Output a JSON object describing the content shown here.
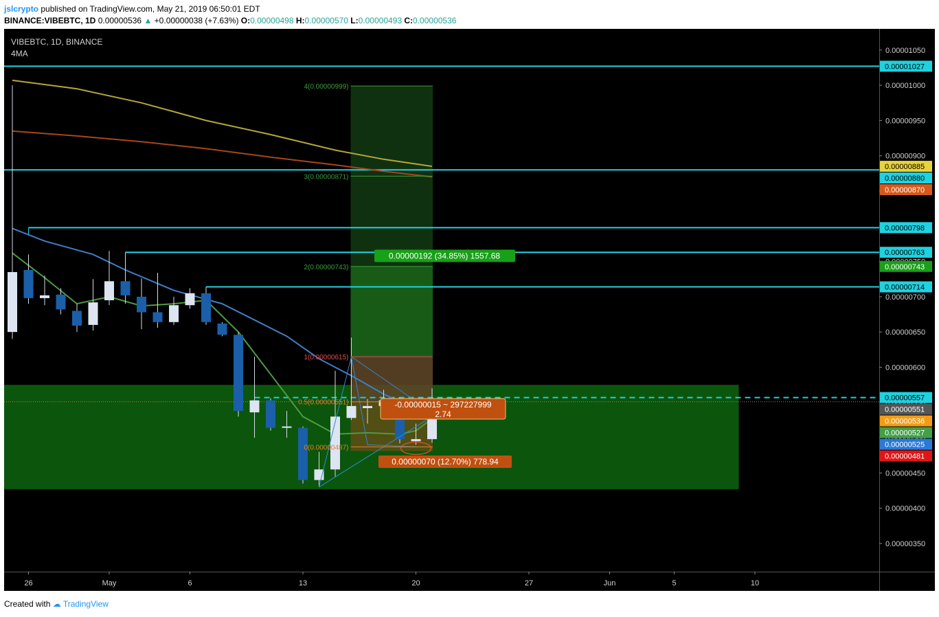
{
  "header": {
    "author": "jslcrypto",
    "published": "published on TradingView.com, May 21, 2019 06:50:01 EDT",
    "symbol_line": "BINANCE:VIBEBTC, 1D",
    "last": "0.00000536",
    "change": "+0.00000038 (+7.63%)",
    "o_label": "O:",
    "o": "0.00000498",
    "h_label": "H:",
    "h": "0.00000570",
    "l_label": "L:",
    "l": "0.00000493",
    "c_label": "C:",
    "c": "0.00000536"
  },
  "legend": {
    "symbol": "VIBEBTC, 1D, BINANCE",
    "indicator": "4MA"
  },
  "footer": {
    "created_with": "Created with",
    "brand": "TradingView"
  },
  "colors": {
    "background": "#000000",
    "bull_candle": "#dde4f2",
    "bear_candle": "#1a5fa8",
    "level_line": "#1fd2e0",
    "zone_fill": "#0d5a0d",
    "ma_yellow": "#b5a73a",
    "ma_orange": "#a8461a",
    "ma_blue": "#3f7fc7",
    "ma_green": "#4f9a44"
  },
  "chart_data": {
    "type": "candlestick",
    "title": "",
    "ylim": [
      3.1e-06,
      1.08e-05
    ],
    "y_ticks": [
      "0.00000350",
      "0.00000400",
      "0.00000450",
      "0.00000500",
      "0.00000550",
      "0.00000600",
      "0.00000650",
      "0.00000700",
      "0.00000750",
      "0.00000800",
      "0.00000850",
      "0.00000900",
      "0.00000950",
      "0.00001000",
      "0.00001050"
    ],
    "x_ticks": [
      {
        "label": "26",
        "day": "2019-04-26"
      },
      {
        "label": "May",
        "day": "2019-05-01"
      },
      {
        "label": "6",
        "day": "2019-05-06"
      },
      {
        "label": "13",
        "day": "2019-05-13"
      },
      {
        "label": "20",
        "day": "2019-05-20"
      },
      {
        "label": "27",
        "day": "2019-05-27"
      },
      {
        "label": "Jun",
        "day": "2019-06-01"
      },
      {
        "label": "5",
        "day": "2019-06-05"
      },
      {
        "label": "10",
        "day": "2019-06-10"
      }
    ],
    "candles": [
      {
        "date": "2019-04-25",
        "o": 6.5e-06,
        "h": 1e-05,
        "l": 6.4e-06,
        "c": 7.35e-06
      },
      {
        "date": "2019-04-26",
        "o": 7.38e-06,
        "h": 7.6e-06,
        "l": 6.9e-06,
        "c": 6.98e-06
      },
      {
        "date": "2019-04-27",
        "o": 6.98e-06,
        "h": 7.3e-06,
        "l": 6.88e-06,
        "c": 7.02e-06
      },
      {
        "date": "2019-04-28",
        "o": 7.03e-06,
        "h": 7.12e-06,
        "l": 6.75e-06,
        "c": 6.82e-06
      },
      {
        "date": "2019-04-29",
        "o": 6.8e-06,
        "h": 6.9e-06,
        "l": 6.5e-06,
        "c": 6.59e-06
      },
      {
        "date": "2019-04-30",
        "o": 6.6e-06,
        "h": 7.25e-06,
        "l": 6.52e-06,
        "c": 6.92e-06
      },
      {
        "date": "2019-05-01",
        "o": 6.95e-06,
        "h": 7.65e-06,
        "l": 6.88e-06,
        "c": 7.22e-06
      },
      {
        "date": "2019-05-02",
        "o": 7.22e-06,
        "h": 7.63e-06,
        "l": 6.9e-06,
        "c": 7.02e-06
      },
      {
        "date": "2019-05-03",
        "o": 7e-06,
        "h": 7.26e-06,
        "l": 6.54e-06,
        "c": 6.78e-06
      },
      {
        "date": "2019-05-04",
        "o": 6.78e-06,
        "h": 7.34e-06,
        "l": 6.56e-06,
        "c": 6.64e-06
      },
      {
        "date": "2019-05-05",
        "o": 6.64e-06,
        "h": 7e-06,
        "l": 6.6e-06,
        "c": 6.88e-06
      },
      {
        "date": "2019-05-06",
        "o": 6.88e-06,
        "h": 7.12e-06,
        "l": 6.83e-06,
        "c": 7.05e-06
      },
      {
        "date": "2019-05-07",
        "o": 7.05e-06,
        "h": 7.14e-06,
        "l": 6.6e-06,
        "c": 6.64e-06
      },
      {
        "date": "2019-05-08",
        "o": 6.62e-06,
        "h": 6.64e-06,
        "l": 6.44e-06,
        "c": 6.46e-06
      },
      {
        "date": "2019-05-09",
        "o": 6.46e-06,
        "h": 6.5e-06,
        "l": 5.3e-06,
        "c": 5.38e-06
      },
      {
        "date": "2019-05-10",
        "o": 5.36e-06,
        "h": 6.15e-06,
        "l": 5e-06,
        "c": 5.53e-06
      },
      {
        "date": "2019-05-11",
        "o": 5.53e-06,
        "h": 5.56e-06,
        "l": 5.1e-06,
        "c": 5.14e-06
      },
      {
        "date": "2019-05-12",
        "o": 5.14e-06,
        "h": 5.38e-06,
        "l": 5e-06,
        "c": 5.16e-06
      },
      {
        "date": "2019-05-13",
        "o": 5.14e-06,
        "h": 5.16e-06,
        "l": 4.35e-06,
        "c": 4.4e-06
      },
      {
        "date": "2019-05-14",
        "o": 4.4e-06,
        "h": 4.8e-06,
        "l": 4.3e-06,
        "c": 4.55e-06
      },
      {
        "date": "2019-05-15",
        "o": 4.55e-06,
        "h": 5.95e-06,
        "l": 4.45e-06,
        "c": 5.3e-06
      },
      {
        "date": "2019-05-16",
        "o": 5.28e-06,
        "h": 6.42e-06,
        "l": 5.25e-06,
        "c": 5.45e-06
      },
      {
        "date": "2019-05-17",
        "o": 5.42e-06,
        "h": 5.55e-06,
        "l": 5.2e-06,
        "c": 5.45e-06
      },
      {
        "date": "2019-05-18",
        "o": 5.45e-06,
        "h": 5.68e-06,
        "l": 5.35e-06,
        "c": 5.53e-06
      },
      {
        "date": "2019-05-19",
        "o": 5.53e-06,
        "h": 5.57e-06,
        "l": 4.92e-06,
        "c": 4.98e-06
      },
      {
        "date": "2019-05-20",
        "o": 4.95e-06,
        "h": 5.2e-06,
        "l": 4.9e-06,
        "c": 4.98e-06
      },
      {
        "date": "2019-05-21",
        "o": 4.98e-06,
        "h": 5.7e-06,
        "l": 4.93e-06,
        "c": 5.36e-06
      }
    ],
    "moving_averages": [
      {
        "color": "#b5a73a",
        "points": [
          [
            "2019-04-25",
            1.007e-05
          ],
          [
            "2019-04-29",
            9.95e-06
          ],
          [
            "2019-05-03",
            9.75e-06
          ],
          [
            "2019-05-07",
            9.5e-06
          ],
          [
            "2019-05-11",
            9.3e-06
          ],
          [
            "2019-05-15",
            9.08e-06
          ],
          [
            "2019-05-18",
            8.95e-06
          ],
          [
            "2019-05-21",
            8.85e-06
          ]
        ]
      },
      {
        "color": "#a8461a",
        "points": [
          [
            "2019-04-25",
            9.35e-06
          ],
          [
            "2019-04-29",
            9.28e-06
          ],
          [
            "2019-05-03",
            9.2e-06
          ],
          [
            "2019-05-07",
            9.1e-06
          ],
          [
            "2019-05-11",
            8.98e-06
          ],
          [
            "2019-05-15",
            8.87e-06
          ],
          [
            "2019-05-18",
            8.78e-06
          ],
          [
            "2019-05-21",
            8.7e-06
          ]
        ]
      },
      {
        "color": "#3f7fc7",
        "points": [
          [
            "2019-04-25",
            7.97e-06
          ],
          [
            "2019-04-27",
            7.79e-06
          ],
          [
            "2019-04-30",
            7.6e-06
          ],
          [
            "2019-05-02",
            7.38e-06
          ],
          [
            "2019-05-05",
            7.09e-06
          ],
          [
            "2019-05-08",
            6.9e-06
          ],
          [
            "2019-05-10",
            6.67e-06
          ],
          [
            "2019-05-12",
            6.44e-06
          ],
          [
            "2019-05-14",
            6.12e-06
          ],
          [
            "2019-05-16",
            5.88e-06
          ],
          [
            "2019-05-18",
            5.62e-06
          ],
          [
            "2019-05-20",
            5.4e-06
          ],
          [
            "2019-05-21",
            5.25e-06
          ]
        ]
      },
      {
        "color": "#4f9a44",
        "points": [
          [
            "2019-04-25",
            7.62e-06
          ],
          [
            "2019-04-27",
            7.27e-06
          ],
          [
            "2019-04-29",
            6.9e-06
          ],
          [
            "2019-05-01",
            7e-06
          ],
          [
            "2019-05-03",
            6.87e-06
          ],
          [
            "2019-05-05",
            6.9e-06
          ],
          [
            "2019-05-07",
            6.95e-06
          ],
          [
            "2019-05-09",
            6.5e-06
          ],
          [
            "2019-05-11",
            5.9e-06
          ],
          [
            "2019-05-13",
            5.3e-06
          ],
          [
            "2019-05-15",
            5.05e-06
          ],
          [
            "2019-05-17",
            5.07e-06
          ],
          [
            "2019-05-19",
            5.05e-06
          ],
          [
            "2019-05-20",
            5.1e-06
          ],
          [
            "2019-05-21",
            5.27e-06
          ]
        ]
      }
    ],
    "horizontal_levels": [
      {
        "price": 1.027e-05,
        "label": "0.00001027",
        "from": "2019-04-24"
      },
      {
        "price": 8.8e-06,
        "label": "0.00000880",
        "from": "2019-04-24"
      },
      {
        "price": 7.98e-06,
        "label": "0.00000798",
        "from": "2019-04-26"
      },
      {
        "price": 7.63e-06,
        "label": "0.00000763",
        "from": "2019-05-02"
      },
      {
        "price": 7.14e-06,
        "label": "0.00000714",
        "from": "2019-05-07"
      },
      {
        "price": 5.57e-06,
        "label": "0.00000557",
        "from": "2019-05-10",
        "dashed": true
      }
    ],
    "support_zone": {
      "from": "2019-04-24",
      "to": "2019-06-09",
      "top": 5.75e-06,
      "bottom": 4.27e-06
    },
    "fib_extension": {
      "from": "2019-05-16",
      "to": "2019-05-21",
      "levels": [
        {
          "ratio": "4",
          "price": 9.99e-06,
          "label": "4(0.00000999)",
          "color": "#3d9a3d"
        },
        {
          "ratio": "3",
          "price": 8.71e-06,
          "label": "3(0.00000871)",
          "color": "#3d9a3d"
        },
        {
          "ratio": "2",
          "price": 7.43e-06,
          "label": "2(0.00000743)",
          "color": "#3d9a3d"
        },
        {
          "ratio": "1",
          "price": 6.15e-06,
          "label": "1(0.00000615)",
          "color": "#e05050"
        },
        {
          "ratio": "0.5",
          "price": 5.51e-06,
          "label": "0.5(0.00000551)",
          "color": "#e08030"
        },
        {
          "ratio": "0",
          "price": 4.87e-06,
          "label": "0(0.00000487)",
          "color": "#e08030"
        }
      ]
    },
    "position_tool": {
      "entry": 5.51e-06,
      "target": 7.43e-06,
      "stop": 4.81e-06,
      "from": "2019-05-16",
      "to": "2019-05-21",
      "target_label": "0.00000192 (34.85%) 1557.68",
      "stop_label": "0.00000070 (12.70%) 778.94",
      "ratio_label": "-0.00000015 ~ 297227999",
      "ratio_value": "2.74"
    },
    "pattern_lines": [
      [
        [
          "2019-05-14",
          4.3e-06
        ],
        [
          "2019-05-16",
          6.15e-06
        ],
        [
          "2019-05-17",
          4.9e-06
        ],
        [
          "2019-05-20",
          4.87e-06
        ]
      ],
      [
        [
          "2019-05-16",
          6.15e-06
        ],
        [
          "2019-05-21",
          5.36e-06
        ]
      ],
      [
        [
          "2019-05-14",
          4.3e-06
        ],
        [
          "2019-05-21",
          5.3e-06
        ]
      ]
    ],
    "price_labels": [
      {
        "text": "0.00001027",
        "price": 1.027e-05,
        "bg": "#1fd2e0",
        "fg": "#000000"
      },
      {
        "text": "0.00000885",
        "price": 8.85e-06,
        "bg": "#e8d33a",
        "fg": "#000000"
      },
      {
        "text": "0.00000880",
        "price": 8.8e-06,
        "bg": "#1fd2e0",
        "fg": "#000000"
      },
      {
        "text": "0.00000870",
        "price": 8.7e-06,
        "bg": "#d55a1a",
        "fg": "#ffffff"
      },
      {
        "text": "0.00000798",
        "price": 7.98e-06,
        "bg": "#1fd2e0",
        "fg": "#000000"
      },
      {
        "text": "0.00000763",
        "price": 7.63e-06,
        "bg": "#1fd2e0",
        "fg": "#000000"
      },
      {
        "text": "0.00000743",
        "price": 7.43e-06,
        "bg": "#18a018",
        "fg": "#ffffff"
      },
      {
        "text": "0.00000714",
        "price": 7.14e-06,
        "bg": "#1fd2e0",
        "fg": "#000000"
      },
      {
        "text": "0.00000557",
        "price": 5.57e-06,
        "bg": "#1fd2e0",
        "fg": "#000000"
      },
      {
        "text": "0.00000551",
        "price": 5.51e-06,
        "bg": "#555555",
        "fg": "#ffffff"
      },
      {
        "text": "0.00000536",
        "price": 5.36e-06,
        "bg": "#f39c12",
        "fg": "#ffffff"
      },
      {
        "text": "0.00000527",
        "price": 5.27e-06,
        "bg": "#43a047",
        "fg": "#ffffff"
      },
      {
        "text": "0.00000525",
        "price": 5.25e-06,
        "bg": "#2979d8",
        "fg": "#ffffff"
      },
      {
        "text": "0.00000481",
        "price": 4.81e-06,
        "bg": "#e01515",
        "fg": "#ffffff"
      }
    ]
  }
}
